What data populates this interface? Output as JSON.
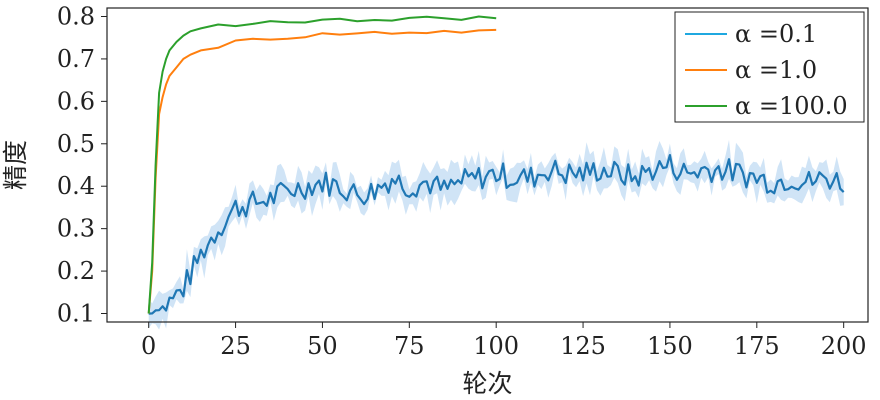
{
  "chart_data": {
    "type": "line",
    "title": "",
    "xlabel": "轮次",
    "ylabel": "精度",
    "xlim": [
      -12,
      207
    ],
    "ylim": [
      0.08,
      0.82
    ],
    "xticks": [
      0,
      25,
      50,
      75,
      100,
      125,
      150,
      175,
      200
    ],
    "xtick_labels": [
      "0",
      "25",
      "50",
      "75",
      "100",
      "125",
      "150",
      "175",
      "200"
    ],
    "yticks": [
      0.1,
      0.2,
      0.3,
      0.4,
      0.5,
      0.6,
      0.7,
      0.8
    ],
    "ytick_labels": [
      "0.1",
      "0.2",
      "0.3",
      "0.4",
      "0.5",
      "0.6",
      "0.7",
      "0.8"
    ],
    "grid": false,
    "legend_position": "top-right",
    "series": [
      {
        "name": "α =0.1",
        "color": "#1f77b4",
        "legend_color": "#1fa8e0",
        "band_color": "#a9cdee",
        "x": [
          0,
          5,
          10,
          15,
          20,
          25,
          30,
          35,
          40,
          45,
          50,
          55,
          60,
          65,
          70,
          75,
          80,
          85,
          90,
          95,
          100,
          105,
          110,
          115,
          120,
          125,
          130,
          135,
          140,
          145,
          150,
          155,
          160,
          165,
          170,
          175,
          180,
          185,
          190,
          195,
          200
        ],
        "y": [
          0.1,
          0.12,
          0.16,
          0.24,
          0.3,
          0.35,
          0.36,
          0.37,
          0.39,
          0.4,
          0.41,
          0.4,
          0.38,
          0.39,
          0.42,
          0.4,
          0.41,
          0.39,
          0.41,
          0.42,
          0.43,
          0.42,
          0.42,
          0.44,
          0.43,
          0.43,
          0.44,
          0.43,
          0.42,
          0.44,
          0.45,
          0.43,
          0.44,
          0.44,
          0.43,
          0.42,
          0.41,
          0.42,
          0.41,
          0.42,
          0.41
        ]
      },
      {
        "name": "α =1.0",
        "color": "#ff7f0e",
        "x": [
          0,
          1,
          2,
          3,
          4,
          5,
          6,
          8,
          10,
          12,
          15,
          20,
          25,
          30,
          35,
          40,
          45,
          50,
          55,
          60,
          65,
          70,
          75,
          80,
          85,
          90,
          95,
          100
        ],
        "y": [
          0.1,
          0.2,
          0.42,
          0.57,
          0.61,
          0.64,
          0.66,
          0.68,
          0.7,
          0.71,
          0.72,
          0.73,
          0.74,
          0.745,
          0.75,
          0.75,
          0.755,
          0.758,
          0.76,
          0.76,
          0.762,
          0.762,
          0.763,
          0.764,
          0.765,
          0.765,
          0.765,
          0.765
        ]
      },
      {
        "name": "α =100.0",
        "color": "#2ca02c",
        "x": [
          0,
          1,
          2,
          3,
          4,
          5,
          6,
          8,
          10,
          12,
          15,
          20,
          25,
          30,
          35,
          40,
          45,
          50,
          55,
          60,
          65,
          70,
          75,
          80,
          85,
          90,
          95,
          100
        ],
        "y": [
          0.1,
          0.22,
          0.45,
          0.62,
          0.67,
          0.7,
          0.72,
          0.74,
          0.755,
          0.765,
          0.772,
          0.778,
          0.782,
          0.785,
          0.787,
          0.788,
          0.789,
          0.79,
          0.791,
          0.792,
          0.793,
          0.794,
          0.795,
          0.795,
          0.796,
          0.796,
          0.796,
          0.797
        ]
      }
    ]
  }
}
